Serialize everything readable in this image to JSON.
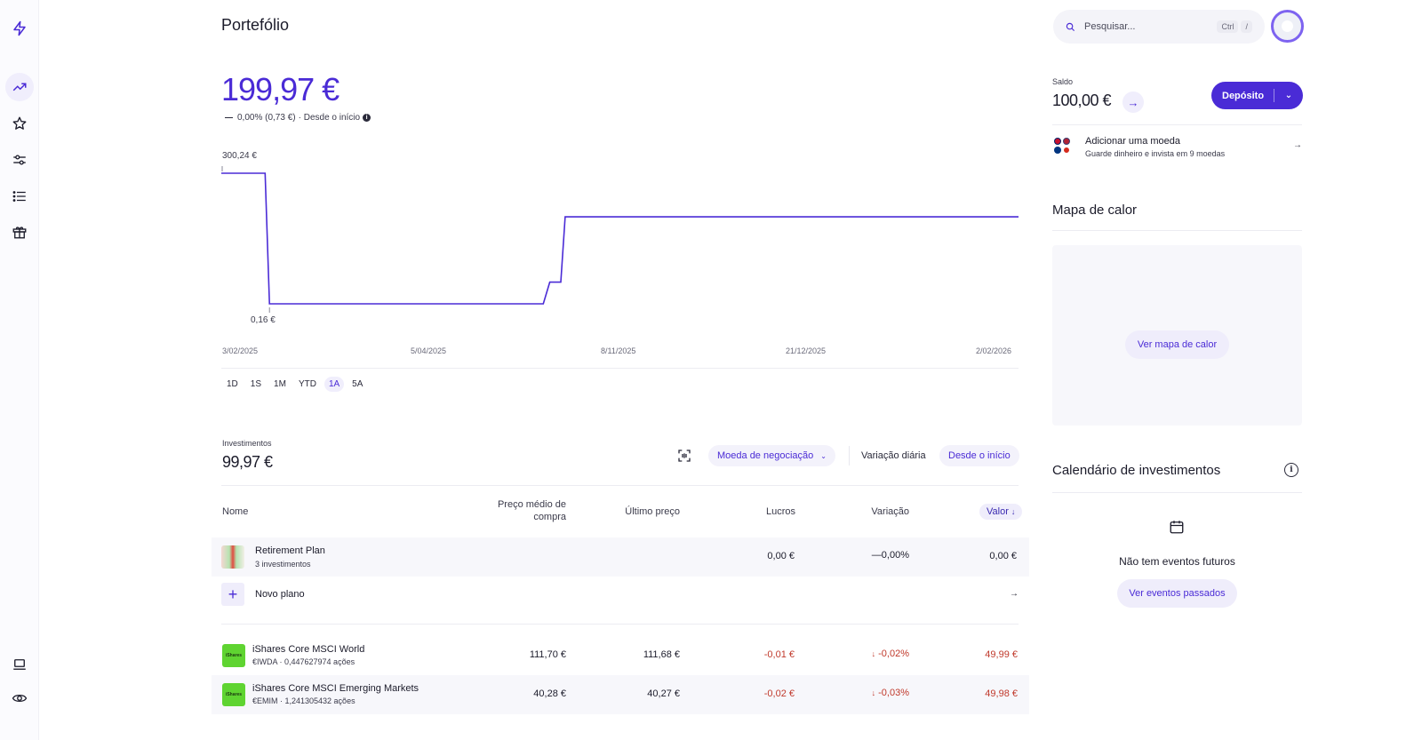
{
  "page": {
    "title": "Portefólio"
  },
  "sidebar": {
    "items": [
      {
        "icon": "logo-bolt-icon"
      },
      {
        "icon": "trending-up-icon",
        "active": true
      },
      {
        "icon": "star-icon"
      },
      {
        "icon": "sliders-icon"
      },
      {
        "icon": "list-icon"
      },
      {
        "icon": "gift-icon"
      },
      {
        "icon": "laptop-icon"
      },
      {
        "icon": "eye-icon"
      }
    ]
  },
  "portfolio": {
    "value": "199,97 €",
    "change": "0,00% (0,73 €)",
    "period": "· Desde o início"
  },
  "chart_data": {
    "type": "line",
    "x": [
      "3/02/2025",
      "5/04/2025",
      "8/11/2025",
      "21/12/2025",
      "2/02/2026"
    ],
    "points": [
      {
        "x": "3/02/2025",
        "y": 300.24
      },
      {
        "x": "23/02/2025",
        "y": 300.24
      },
      {
        "x": "25/02/2025",
        "y": 0.16
      },
      {
        "x": "30/06/2025",
        "y": 0.16
      },
      {
        "x": "3/07/2025",
        "y": 49.99
      },
      {
        "x": "8/07/2025",
        "y": 49.99
      },
      {
        "x": "10/07/2025",
        "y": 199.97
      },
      {
        "x": "2/02/2026",
        "y": 199.97
      }
    ],
    "annotations": {
      "max_label": "300,24 €",
      "min_label": "0,16 €"
    },
    "ylim": [
      0.16,
      300.24
    ],
    "grid": false,
    "color": "#4a2bd6"
  },
  "ranges": [
    {
      "label": "1D",
      "active": false
    },
    {
      "label": "1S",
      "active": false
    },
    {
      "label": "1M",
      "active": false
    },
    {
      "label": "YTD",
      "active": false
    },
    {
      "label": "1A",
      "active": true
    },
    {
      "label": "5A",
      "active": false
    }
  ],
  "investments": {
    "label": "Investimentos",
    "value": "99,97 €",
    "currency_filter": "Moeda de negociação",
    "daily_change": "Variação diária",
    "since_start": "Desde o início"
  },
  "table": {
    "columns": {
      "name": "Nome",
      "avg_price_line1": "Preço médio de",
      "avg_price_line2": "compra",
      "last_price": "Último preço",
      "profits": "Lucros",
      "change": "Variação",
      "value": "Valor"
    },
    "plan": {
      "name": "Retirement Plan",
      "sub": "3 investimentos",
      "profit": "0,00 €",
      "change": "0,00%",
      "value": "0,00 €"
    },
    "new_plan": {
      "label": "Novo plano"
    },
    "rows": [
      {
        "logo": "iShares",
        "name": "iShares Core MSCI World",
        "sub": "€IWDA · 0,447627974 ações",
        "avg_price": "111,70 €",
        "last_price": "111,68 €",
        "profit": "-0,01 €",
        "change": "-0,02%",
        "value": "49,99 €"
      },
      {
        "logo": "iShares",
        "name": "iShares Core MSCI Emerging Markets",
        "sub": "€EMIM · 1,241305432 ações",
        "avg_price": "40,28 €",
        "last_price": "40,27 €",
        "profit": "-0,02 €",
        "change": "-0,03%",
        "value": "49,98 €"
      }
    ]
  },
  "header": {
    "search_placeholder": "Pesquisar...",
    "kbd_ctrl": "Ctrl",
    "kbd_slash": "/"
  },
  "balance": {
    "label": "Saldo",
    "value": "100,00 €",
    "deposit": "Depósito"
  },
  "currency": {
    "title": "Adicionar uma moeda",
    "sub": "Guarde dinheiro e invista em 9 moedas"
  },
  "heatmap": {
    "title": "Mapa de calor",
    "button": "Ver mapa de calor"
  },
  "calendar": {
    "title": "Calendário de investimentos",
    "empty": "Não tem eventos futuros",
    "button": "Ver eventos passados"
  },
  "colors": {
    "accent": "#4a2bd6",
    "negative": "#c0392b",
    "etf_logo": "#5fd431"
  }
}
